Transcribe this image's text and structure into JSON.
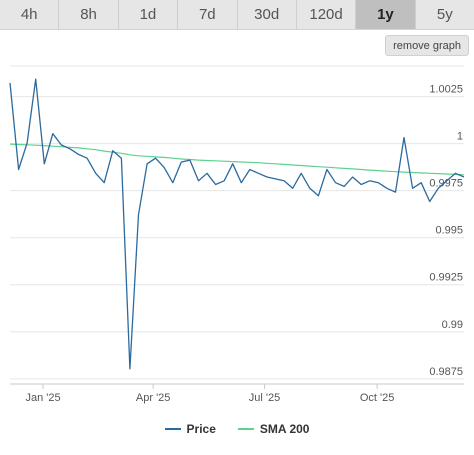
{
  "tabs": [
    {
      "label": "4h",
      "active": false
    },
    {
      "label": "8h",
      "active": false
    },
    {
      "label": "1d",
      "active": false
    },
    {
      "label": "7d",
      "active": false
    },
    {
      "label": "30d",
      "active": false
    },
    {
      "label": "120d",
      "active": false
    },
    {
      "label": "1y",
      "active": true
    },
    {
      "label": "5y",
      "active": false
    }
  ],
  "remove_graph_label": "remove graph",
  "colors": {
    "price": "#2b6a9e",
    "sma": "#5fd08e",
    "grid": "#e6e6e6"
  },
  "chart_data": {
    "type": "line",
    "x_ticks": [
      "Jan '25",
      "Apr '25",
      "Jul '25",
      "Oct '25"
    ],
    "y_ticks": [
      1.0025,
      1,
      0.9975,
      0.995,
      0.9925,
      0.99,
      0.9875
    ],
    "ylim": [
      0.9868,
      1.0037
    ],
    "grid": "horizontal",
    "legend": "bottom-center",
    "series": [
      {
        "name": "Price",
        "step_days": 7,
        "start": "2024-12-05",
        "values": [
          1.0028,
          0.9982,
          0.9996,
          1.003,
          0.9985,
          1.0001,
          0.9995,
          0.9993,
          0.999,
          0.9988,
          0.998,
          0.9975,
          0.9992,
          0.9988,
          0.9876,
          0.9958,
          0.9985,
          0.9988,
          0.9983,
          0.9975,
          0.9986,
          0.9987,
          0.9976,
          0.998,
          0.9974,
          0.9976,
          0.9985,
          0.9975,
          0.9982,
          0.998,
          0.9978,
          0.9977,
          0.9976,
          0.9972,
          0.998,
          0.9972,
          0.9968,
          0.9982,
          0.9975,
          0.9973,
          0.9978,
          0.9974,
          0.9976,
          0.9975,
          0.9972,
          0.997,
          0.9999,
          0.9972,
          0.9975,
          0.9965,
          0.9972,
          0.9976,
          0.998,
          0.9978
        ]
      },
      {
        "name": "SMA 200",
        "step_days": 7,
        "start": "2024-12-05",
        "values": [
          0.99955,
          0.99953,
          0.99951,
          0.99949,
          0.99947,
          0.99944,
          0.99941,
          0.99938,
          0.99935,
          0.9993,
          0.99925,
          0.99918,
          0.99912,
          0.99906,
          0.99898,
          0.99893,
          0.9989,
          0.99887,
          0.99884,
          0.9988,
          0.99876,
          0.99873,
          0.9987,
          0.99868,
          0.99866,
          0.99864,
          0.99862,
          0.9986,
          0.99858,
          0.99856,
          0.99853,
          0.9985,
          0.99847,
          0.99844,
          0.99841,
          0.99838,
          0.99835,
          0.99832,
          0.99829,
          0.99826,
          0.99823,
          0.9982,
          0.99817,
          0.99814,
          0.99811,
          0.99808,
          0.99806,
          0.99804,
          0.99802,
          0.998,
          0.99798,
          0.99796,
          0.99794,
          0.99792
        ]
      }
    ]
  }
}
